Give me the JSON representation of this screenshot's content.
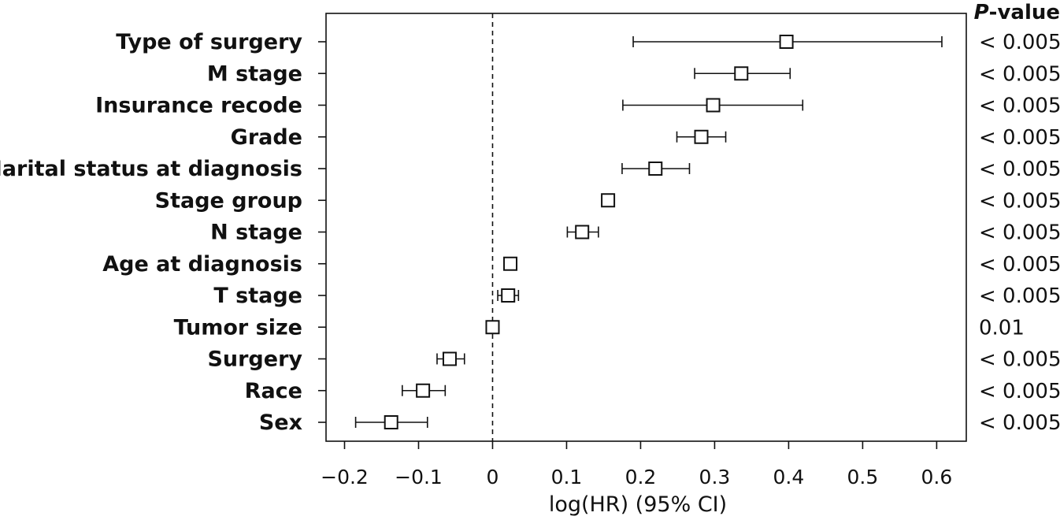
{
  "chart_data": {
    "type": "forest",
    "xlabel": "log(HR) (95% CI)",
    "pvalue_header_italic": "P",
    "pvalue_header_rest": "-value",
    "xlim": [
      -0.225,
      0.64
    ],
    "xticks": [
      -0.2,
      -0.1,
      0,
      0.1,
      0.2,
      0.3,
      0.4,
      0.5,
      0.6
    ],
    "xtick_labels": [
      "−0.2",
      "−0.1",
      "0",
      "0.1",
      "0.2",
      "0.3",
      "0.4",
      "0.5",
      "0.6"
    ],
    "reference_line": 0,
    "rows": [
      {
        "label": "Type of surgery",
        "estimate": 0.397,
        "lower": 0.19,
        "upper": 0.607,
        "p_value": "< 0.005"
      },
      {
        "label": "M stage",
        "estimate": 0.336,
        "lower": 0.273,
        "upper": 0.402,
        "p_value": "< 0.005"
      },
      {
        "label": "Insurance recode",
        "estimate": 0.298,
        "lower": 0.176,
        "upper": 0.419,
        "p_value": "< 0.005"
      },
      {
        "label": "Grade",
        "estimate": 0.282,
        "lower": 0.249,
        "upper": 0.315,
        "p_value": "< 0.005"
      },
      {
        "label": "Marital status at diagnosis",
        "estimate": 0.22,
        "lower": 0.175,
        "upper": 0.266,
        "p_value": "< 0.005"
      },
      {
        "label": "Stage group",
        "estimate": 0.156,
        "lower": 0.152,
        "upper": 0.161,
        "p_value": "< 0.005"
      },
      {
        "label": "N stage",
        "estimate": 0.121,
        "lower": 0.101,
        "upper": 0.143,
        "p_value": "< 0.005"
      },
      {
        "label": "Age at diagnosis",
        "estimate": 0.024,
        "lower": 0.023,
        "upper": 0.025,
        "p_value": "< 0.005"
      },
      {
        "label": "T stage",
        "estimate": 0.021,
        "lower": 0.007,
        "upper": 0.035,
        "p_value": "< 0.005"
      },
      {
        "label": "Tumor size",
        "estimate": 0.0,
        "lower": -0.001,
        "upper": 0.001,
        "p_value": "0.01"
      },
      {
        "label": "Surgery",
        "estimate": -0.058,
        "lower": -0.075,
        "upper": -0.038,
        "p_value": "< 0.005"
      },
      {
        "label": "Race",
        "estimate": -0.094,
        "lower": -0.122,
        "upper": -0.064,
        "p_value": "< 0.005"
      },
      {
        "label": "Sex",
        "estimate": -0.137,
        "lower": -0.185,
        "upper": -0.088,
        "p_value": "< 0.005"
      }
    ]
  }
}
